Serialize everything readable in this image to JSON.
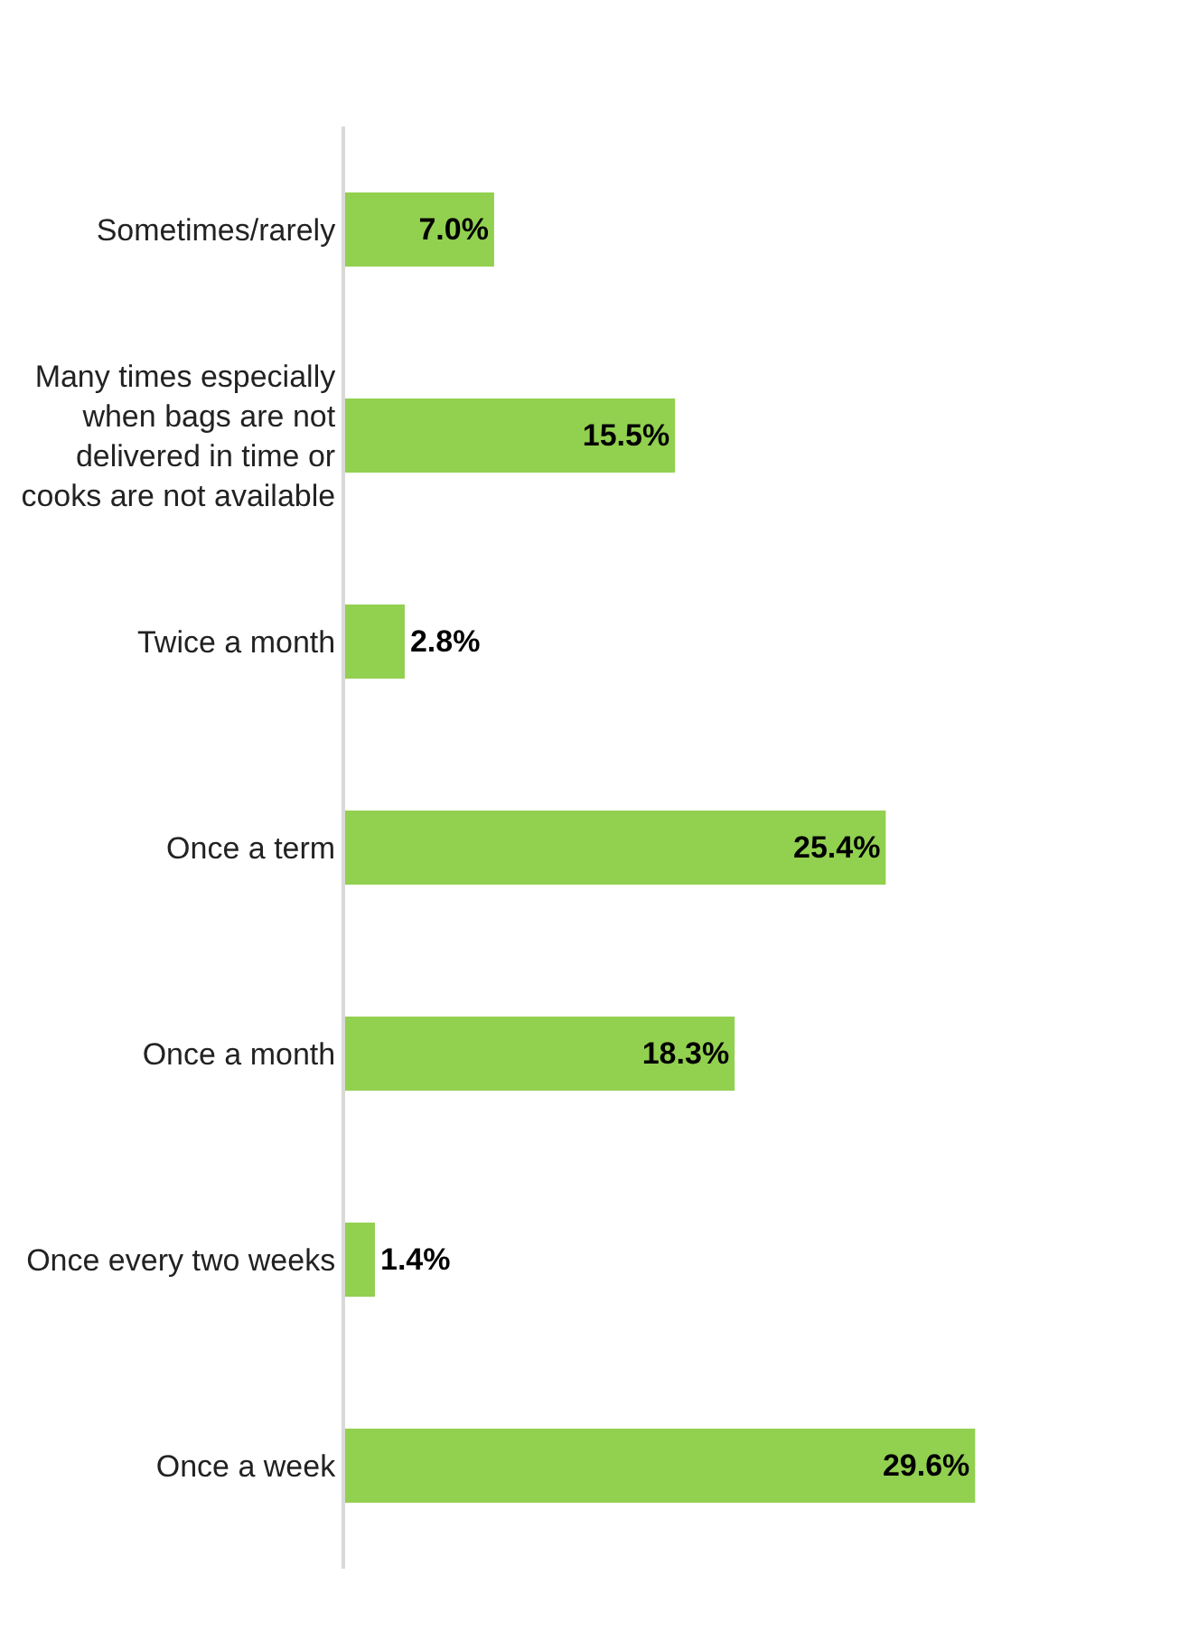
{
  "chart_data": {
    "type": "bar",
    "orientation": "horizontal",
    "categories": [
      "Sometimes/rarely",
      "Many times especially when bags are not delivered in time or cooks are not available",
      "Twice a month",
      "Once a term",
      "Once a month",
      "Once every two weeks",
      "Once a week"
    ],
    "values": [
      7.0,
      15.5,
      2.8,
      25.4,
      18.3,
      1.4,
      29.6
    ],
    "value_labels": [
      "7.0%",
      "15.5%",
      "2.8%",
      "25.4%",
      "18.3%",
      "1.4%",
      "29.6%"
    ],
    "color": "#92d050"
  }
}
